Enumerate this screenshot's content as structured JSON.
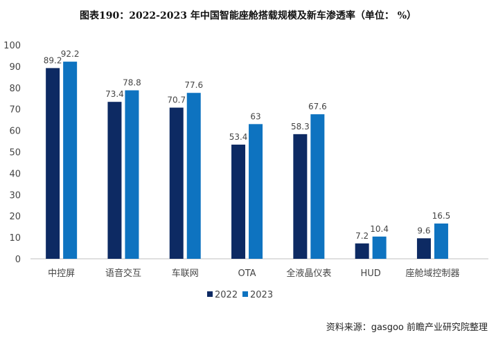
{
  "chart_data": {
    "type": "bar",
    "title": "图表190：2022-2023 年中国智能座舱搭载规模及新车渗透率（单位： %）",
    "categories": [
      "中控屏",
      "语音交互",
      "车联网",
      "OTA",
      "全液晶仪表",
      "HUD",
      "座舱域控制器"
    ],
    "series": [
      {
        "name": "2022",
        "values": [
          89.2,
          73.4,
          70.7,
          53.4,
          58.3,
          7.2,
          9.6
        ],
        "color": "#0d2a63"
      },
      {
        "name": "2023",
        "values": [
          92.2,
          78.8,
          77.6,
          63,
          67.6,
          10.4,
          16.5
        ],
        "color": "#0e73c0"
      }
    ],
    "ylim": [
      0,
      100
    ],
    "yticks": [
      0,
      10,
      20,
      30,
      40,
      50,
      60,
      70,
      80,
      90,
      100
    ],
    "grid": false,
    "legend": "bottom",
    "xlabel": "",
    "ylabel": ""
  },
  "source": "资料来源：gasgoo  前瞻产业研究院整理"
}
